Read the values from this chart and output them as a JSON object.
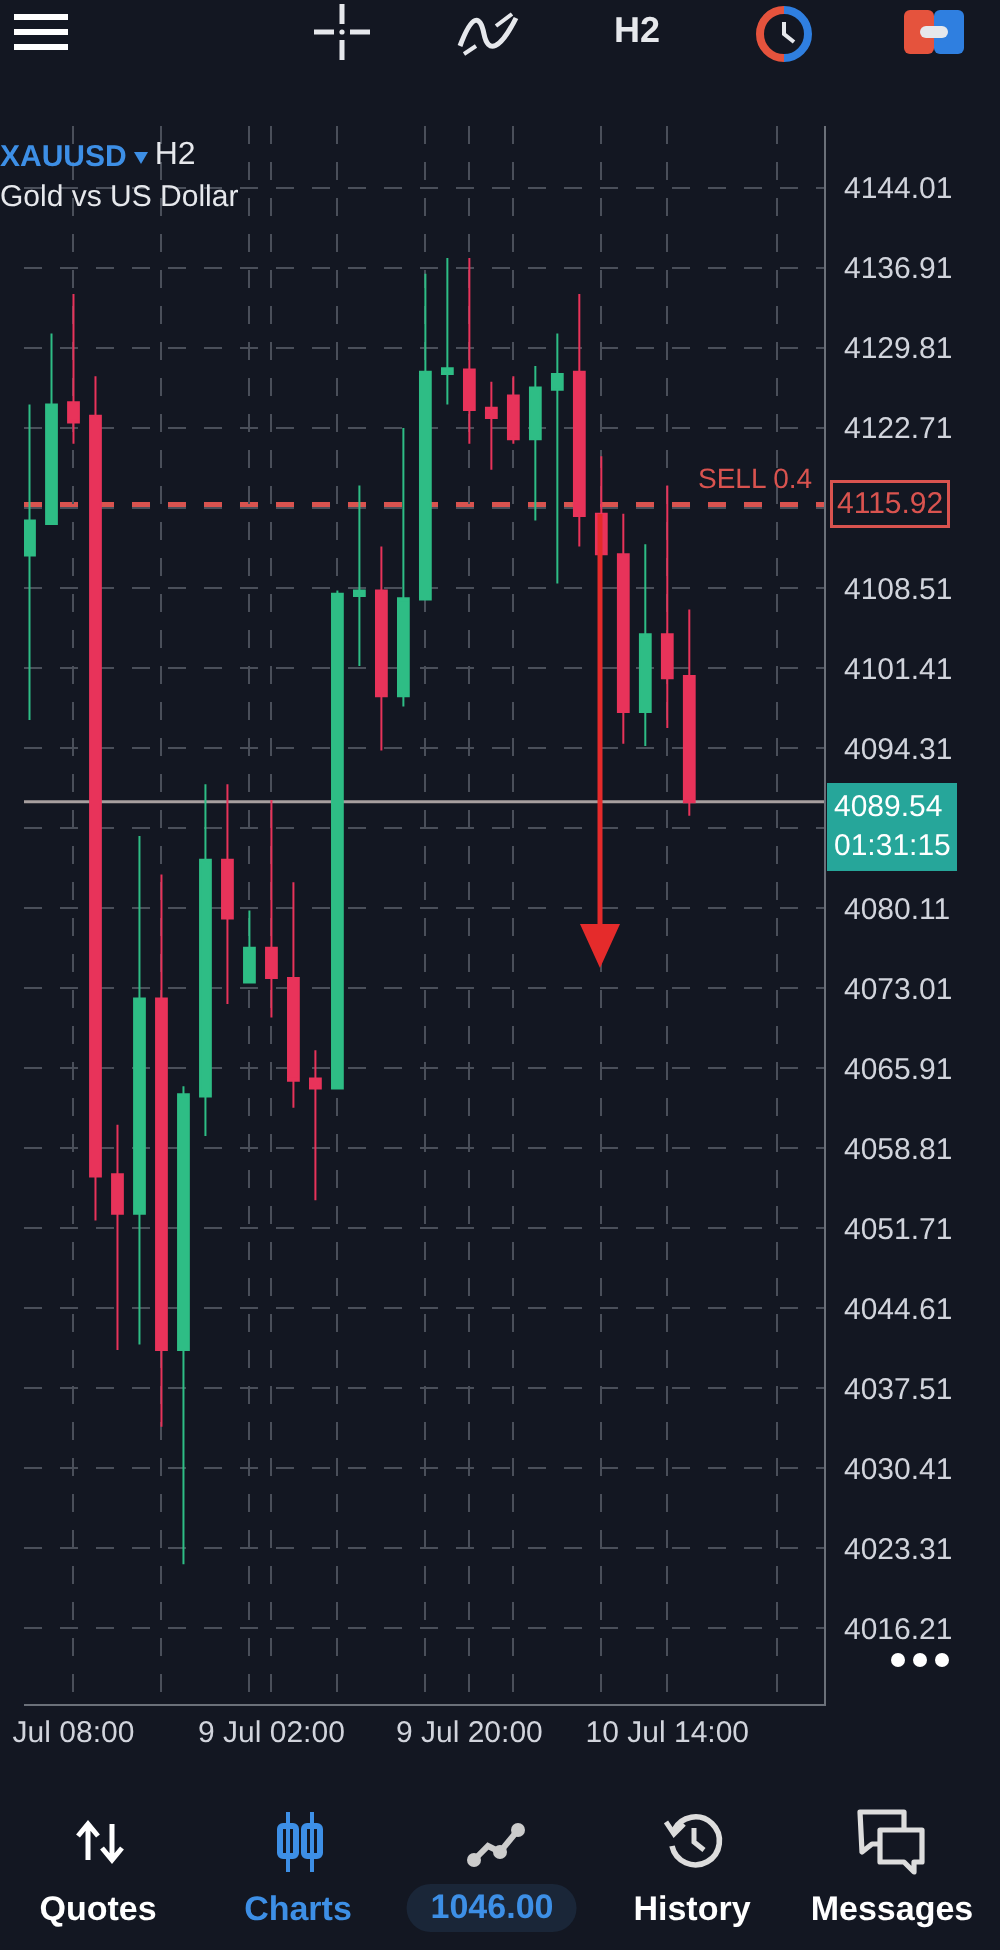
{
  "chart_data": {
    "type": "candlestick",
    "title": "XAUUSD",
    "subtitle": "Gold vs US Dollar",
    "x": [
      "--07-08T04:00",
      "--07-08T06:00",
      "--07-08T08:00",
      "--07-08T10:00",
      "--07-08T12:00",
      "--07-08T14:00",
      "--07-08T16:00",
      "--07-08T18:00",
      "--07-08T20:00",
      "--07-08T22:00",
      "--07-09T00:00",
      "--07-09T02:00",
      "--07-09T04:00",
      "--07-09T06:00",
      "--07-09T08:00",
      "--07-09T10:00",
      "--07-09T12:00",
      "--07-09T14:00",
      "--07-09T16:00",
      "--07-09T18:00",
      "--07-09T20:00",
      "--07-09T22:00",
      "--07-10T00:00",
      "--07-10T02:00",
      "--07-10T04:00",
      "--07-10T06:00",
      "--07-10T08:00",
      "--07-10T10:00",
      "--07-10T12:00",
      "--07-10T14:00",
      "--07-10T16:00"
    ],
    "ohlc": [
      [
        4111.4,
        4124.8,
        4096.8,
        4114.5
      ],
      [
        4114.2,
        4131.1,
        4114.2,
        4124.8
      ],
      [
        4125.0,
        4134.6,
        4121.3,
        4123.2
      ],
      [
        4123.8,
        4127.3,
        4052.4,
        4056.3
      ],
      [
        4056.5,
        4060.9,
        4040.9,
        4053.0
      ],
      [
        4053.0,
        4086.5,
        4041.4,
        4072.1
      ],
      [
        4072.1,
        4083.1,
        4034.1,
        4040.9
      ],
      [
        4040.9,
        4064.3,
        4021.9,
        4063.6
      ],
      [
        4063.4,
        4091.1,
        4059.9,
        4084.4
      ],
      [
        4084.4,
        4091.1,
        4071.6,
        4079.2
      ],
      [
        4073.5,
        4079.9,
        4073.5,
        4076.6
      ],
      [
        4076.6,
        4089.7,
        4070.4,
        4073.9
      ],
      [
        4073.9,
        4082.4,
        4062.4,
        4064.8
      ],
      [
        4065.0,
        4067.5,
        4054.2,
        4064.1
      ],
      [
        4064.1,
        4108.3,
        4064.1,
        4108.0
      ],
      [
        4107.8,
        4117.6,
        4101.6,
        4108.3
      ],
      [
        4108.3,
        4112.2,
        4094.1,
        4098.9
      ],
      [
        4098.9,
        4122.7,
        4098.0,
        4107.6
      ],
      [
        4107.5,
        4136.4,
        4107.5,
        4127.7
      ],
      [
        4127.5,
        4137.8,
        4124.8,
        4128.0
      ],
      [
        4127.9,
        4137.8,
        4121.3,
        4124.3
      ],
      [
        4124.5,
        4126.8,
        4119.0,
        4123.6
      ],
      [
        4125.6,
        4127.3,
        4121.3,
        4121.7
      ],
      [
        4121.7,
        4128.2,
        4114.5,
        4126.3
      ],
      [
        4126.1,
        4131.1,
        4108.9,
        4127.5
      ],
      [
        4127.7,
        4134.6,
        4112.2,
        4114.9
      ],
      [
        4115.1,
        4120.2,
        4111.5,
        4111.5
      ],
      [
        4111.5,
        4115.1,
        4094.7,
        4097.5
      ],
      [
        4097.5,
        4112.4,
        4094.5,
        4104.4
      ],
      [
        4104.4,
        4117.6,
        4096.1,
        4100.5
      ],
      [
        4100.7,
        4106.6,
        4088.3,
        4089.5
      ]
    ],
    "colors": [
      "#2ebd85",
      "#2ebd85",
      "#e8335a",
      "#e8335a",
      "#e8335a",
      "#2ebd85",
      "#e8335a",
      "#2ebd85",
      "#2ebd85",
      "#e8335a",
      "#2ebd85",
      "#e8335a",
      "#e8335a",
      "#e8335a",
      "#2ebd85",
      "#2ebd85",
      "#e8335a",
      "#2ebd85",
      "#2ebd85",
      "#2ebd85",
      "#e8335a",
      "#e8335a",
      "#e8335a",
      "#2ebd85",
      "#2ebd85",
      "#e8335a",
      "#e8335a",
      "#e8335a",
      "#2ebd85",
      "#e8335a",
      "#e8335a"
    ],
    "xlim": [
      "--07-08T03:30",
      "--07-11T04:15"
    ],
    "xticks": [
      {
        "value": "--07-08T08:00",
        "label": "Jul 08:00"
      },
      {
        "value": "--07-08T16:00",
        "label": null
      },
      {
        "value": "--07-09T00:00",
        "label": null
      },
      {
        "value": "--07-09T02:00",
        "label": "9 Jul 02:00"
      },
      {
        "value": "--07-09T08:00",
        "label": null
      },
      {
        "value": "--07-09T16:00",
        "label": null
      },
      {
        "value": "--07-09T20:00",
        "label": "9 Jul 20:00"
      },
      {
        "value": "--07-10T00:00",
        "label": null
      },
      {
        "value": "--07-10T08:00",
        "label": null
      },
      {
        "value": "--07-10T14:00",
        "label": "10 Jul 14:00"
      },
      {
        "value": "--07-11T00:00",
        "label": null
      }
    ],
    "ylim": [
      4009.5,
      4149.5
    ],
    "yticks": [
      4144.01,
      4136.91,
      4129.81,
      4122.71,
      {
        "value": 4115.61,
        "label": null
      },
      4108.51,
      4101.41,
      4094.31,
      {
        "value": 4087.21,
        "label": null
      },
      4080.11,
      4073.01,
      4065.91,
      4058.81,
      4051.71,
      4044.61,
      4037.51,
      4030.41,
      4023.31,
      4016.21
    ],
    "grid": true,
    "ref_lines": [
      {
        "axis": "y",
        "value": 4115.92,
        "label": "SELL 0.4",
        "color": "#d9534f",
        "line_style": "dashed"
      },
      {
        "axis": "y",
        "value": 4089.54,
        "label": "4089.54",
        "color": "#a79f9f",
        "line_style": "solid"
      }
    ],
    "annotations": [
      "H2",
      "H2",
      "Quotes",
      "Charts",
      "1046.00",
      "History",
      "Messages",
      "4115.92",
      "01:31:15"
    ]
  }
}
